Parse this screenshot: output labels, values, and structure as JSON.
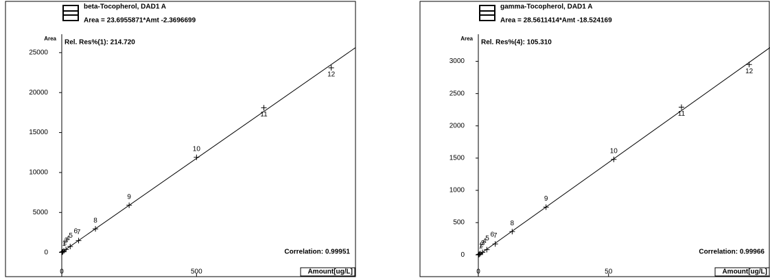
{
  "chart_data": [
    {
      "type": "scatter",
      "title": "beta-Tocopherol, DAD1 A",
      "subtitle": "Area = 23.6955871*Amt -2.3696699",
      "annotation": "Rel. Res%(1): 214.720",
      "correlation": "Correlation: 0.99951",
      "y_label": "Area",
      "x_label": "Amount[ug/L]",
      "color": "#000000",
      "point_labels": [
        "1",
        "2",
        "3",
        "4",
        "5",
        "6",
        "7",
        "8",
        "9",
        "10",
        "11",
        "12"
      ],
      "x": [
        1,
        2,
        3.9,
        7.8,
        15.6,
        31.25,
        62.5,
        125,
        250,
        500,
        750,
        1000
      ],
      "values": [
        20,
        45,
        90,
        185,
        370,
        740,
        1480,
        2950,
        5900,
        11900,
        18100,
        23100
      ],
      "xlim": [
        0,
        1090
      ],
      "ylim": [
        -2000,
        27300
      ],
      "xticks": [
        0,
        500
      ],
      "yticks": [
        0,
        5000,
        10000,
        15000,
        20000,
        25000
      ]
    },
    {
      "type": "scatter",
      "title": "gamma-Tocopherol, DAD1 A",
      "subtitle": "Area = 28.5611414*Amt -18.524169",
      "annotation": "Rel. Res%(4): 105.310",
      "correlation": "Correlation: 0.99966",
      "y_label": "Area",
      "x_label": "Amount[ug/L]",
      "color": "#000000",
      "point_labels": [
        "1",
        "2",
        "3",
        "4",
        "5",
        "6",
        "7",
        "8",
        "9",
        "10",
        "11",
        "12"
      ],
      "x": [
        0.1,
        0.2,
        0.4,
        0.8,
        1.6,
        3.25,
        6.5,
        13,
        26,
        52,
        78,
        104
      ],
      "values": [
        2,
        5,
        10,
        20,
        40,
        80,
        170,
        360,
        740,
        1480,
        2290,
        2950
      ],
      "xlim": [
        0,
        112
      ],
      "ylim": [
        -210,
        3420
      ],
      "xticks": [
        0,
        50
      ],
      "yticks": [
        0,
        500,
        1000,
        1500,
        2000,
        2500,
        3000
      ]
    }
  ]
}
